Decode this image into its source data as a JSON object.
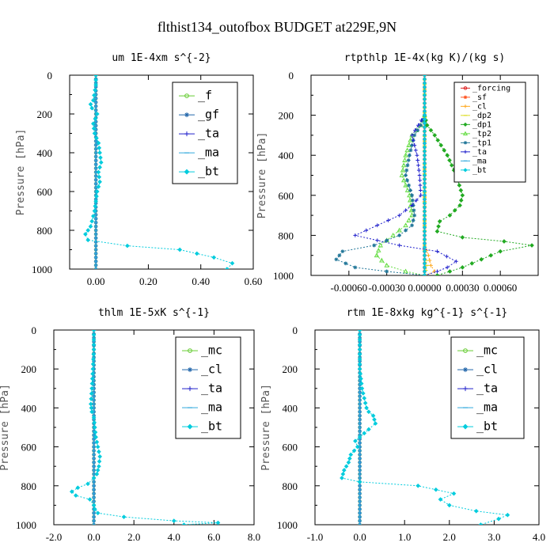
{
  "figure": {
    "title": "flthist134_outofbox  BUDGET at229E,9N"
  },
  "chart_data": [
    {
      "type": "line",
      "title": "um  1E-4xm s^{-2}",
      "ylabel": "Pressure [hPa]",
      "xlabel": "",
      "xlim": [
        -0.1,
        0.6
      ],
      "ylim": [
        1000,
        0
      ],
      "y_reversed": true,
      "xticks": [
        0.0,
        0.2,
        0.4,
        0.6
      ],
      "xtick_labels": [
        "0.00",
        "0.20",
        "0.40",
        "0.60"
      ],
      "yticks": [
        0,
        200,
        400,
        600,
        800,
        1000
      ],
      "ytick_labels": [
        "0",
        "200",
        "400",
        "600",
        "800",
        "1000"
      ],
      "grid": false,
      "legend_position": "top-right",
      "series": [
        {
          "name": "_f",
          "color": "#66cc33",
          "marker": "circle",
          "x": [
            0.0,
            0.0,
            0.0,
            0.0,
            0.0,
            0.0,
            0.0
          ],
          "y": [
            0,
            150,
            300,
            500,
            700,
            900,
            1000
          ]
        },
        {
          "name": "_gf",
          "color": "#2266aa",
          "marker": "star",
          "x": [
            0.0,
            0.0,
            0.0,
            0.0,
            0.0,
            0.0,
            0.0
          ],
          "y": [
            0,
            150,
            300,
            500,
            700,
            900,
            1000
          ]
        },
        {
          "name": "_ta",
          "color": "#2222cc",
          "marker": "plus",
          "x": [
            0.0,
            0.0,
            0.0,
            0.0,
            0.0,
            0.0,
            0.0
          ],
          "y": [
            0,
            150,
            300,
            500,
            700,
            900,
            1000
          ]
        },
        {
          "name": "_ma",
          "color": "#33aadd",
          "marker": "dash",
          "x": [
            0.0,
            0.0,
            0.0,
            0.0,
            0.0,
            0.0,
            0.0
          ],
          "y": [
            0,
            150,
            300,
            500,
            700,
            900,
            1000
          ]
        },
        {
          "name": "_bt",
          "color": "#00ccdd",
          "marker": "diamond",
          "x": [
            0.0,
            0.0,
            -0.01,
            -0.02,
            -0.015,
            0.005,
            -0.01,
            -0.005,
            0.01,
            0.015,
            0.02,
            0.01,
            0.015,
            0.005,
            -0.005,
            -0.02,
            -0.04,
            -0.03,
            0.12,
            0.32,
            0.45,
            0.52,
            0.5
          ],
          "y": [
            0,
            50,
            130,
            150,
            170,
            200,
            250,
            300,
            350,
            400,
            450,
            500,
            550,
            600,
            700,
            780,
            820,
            850,
            880,
            900,
            940,
            970,
            1000
          ]
        }
      ]
    },
    {
      "type": "line",
      "title": "rtpthlp  1E-4x(kg K)/(kg s)",
      "ylabel": "Pressure [hPa]",
      "xlabel": "",
      "xlim": [
        -0.0009,
        0.0009
      ],
      "ylim": [
        1000,
        0
      ],
      "y_reversed": true,
      "xticks": [
        -0.0006,
        -0.0003,
        0.0,
        0.0003,
        0.0006
      ],
      "xtick_labels": [
        "-0.00060",
        "-0.00030",
        "0.00000",
        "0.00030",
        "0.00060"
      ],
      "yticks": [
        0,
        200,
        400,
        600,
        800,
        1000
      ],
      "ytick_labels": [
        "0",
        "200",
        "400",
        "600",
        "800",
        "1000"
      ],
      "grid": false,
      "legend_position": "top-right",
      "series": [
        {
          "name": "_forcing",
          "color": "#dd2222",
          "marker": "circle",
          "x": [
            0.0,
            0.0,
            0.0,
            0.0,
            0.0,
            0.0
          ],
          "y": [
            0,
            200,
            400,
            600,
            800,
            1000
          ]
        },
        {
          "name": "_sf",
          "color": "#ff5522",
          "marker": "star",
          "x": [
            0.0,
            0.0,
            0.0,
            0.0,
            0.0,
            0.0
          ],
          "y": [
            0,
            200,
            400,
            600,
            800,
            1000
          ]
        },
        {
          "name": "_cl",
          "color": "#ffaa22",
          "marker": "plus",
          "x": [
            0.0,
            0.0,
            0.0,
            0.0,
            3e-05,
            5e-05,
            8e-05,
            0.0
          ],
          "y": [
            0,
            400,
            700,
            850,
            900,
            950,
            980,
            1000
          ]
        },
        {
          "name": "_dp2",
          "color": "#dddd22",
          "marker": "dash",
          "x": [
            0.0,
            0.0,
            0.0,
            0.0,
            2e-05,
            0.0
          ],
          "y": [
            0,
            400,
            800,
            900,
            950,
            1000
          ]
        },
        {
          "name": "_dp1",
          "color": "#22aa22",
          "marker": "diamond",
          "x": [
            0.0,
            2e-05,
            8e-05,
            0.00018,
            0.00025,
            0.0003,
            0.00028,
            0.0002,
            0.00012,
            0.0001,
            0.0003,
            0.00063,
            0.00085,
            0.0006,
            0.00045,
            0.0003,
            0.0001
          ],
          "y": [
            200,
            250,
            300,
            400,
            500,
            600,
            650,
            700,
            730,
            780,
            810,
            830,
            850,
            880,
            920,
            960,
            1000
          ]
        },
        {
          "name": "_tp2",
          "color": "#66dd44",
          "marker": "triangle",
          "x": [
            0.0,
            -3e-05,
            -0.0001,
            -0.00015,
            -0.00018,
            -0.00012,
            -0.0001,
            -0.00015,
            -0.00025,
            -0.00035,
            -0.00038,
            -0.0003,
            -0.00015,
            0.0
          ],
          "y": [
            200,
            250,
            300,
            400,
            500,
            600,
            700,
            750,
            800,
            850,
            900,
            950,
            980,
            1000
          ]
        },
        {
          "name": "_tp1",
          "color": "#227799",
          "marker": "star",
          "x": [
            0.0,
            -3e-05,
            -8e-05,
            -0.00012,
            -0.00015,
            -0.0001,
            -8e-05,
            -0.0001,
            -0.0002,
            -0.0004,
            -0.00065,
            -0.0007,
            -0.00055,
            -0.0003,
            0.0
          ],
          "y": [
            200,
            250,
            300,
            400,
            500,
            600,
            700,
            750,
            800,
            850,
            880,
            920,
            960,
            980,
            1000
          ]
        },
        {
          "name": "_ta",
          "color": "#2222cc",
          "marker": "plus",
          "x": [
            0.0,
            -5e-05,
            -0.0001,
            -6e-05,
            -4e-05,
            -3e-05,
            -0.0001,
            -0.0002,
            -0.00055,
            -0.0002,
            0.0001,
            0.00025,
            0.00018,
            0.0001,
            0.0
          ],
          "y": [
            200,
            250,
            300,
            400,
            500,
            600,
            650,
            700,
            800,
            850,
            880,
            930,
            960,
            980,
            1000
          ]
        },
        {
          "name": "_ma",
          "color": "#33aadd",
          "marker": "dash",
          "x": [
            0.0,
            0.0,
            0.0,
            0.0,
            0.0,
            0.0
          ],
          "y": [
            0,
            200,
            400,
            600,
            800,
            1000
          ]
        },
        {
          "name": "_bt",
          "color": "#00ccdd",
          "marker": "diamond",
          "x": [
            0.0,
            0.0,
            0.0,
            0.0,
            0.0,
            0.0
          ],
          "y": [
            0,
            200,
            400,
            600,
            800,
            1000
          ]
        }
      ]
    },
    {
      "type": "line",
      "title": "thlm  1E-5xK s^{-1}",
      "ylabel": "Pressure [hPa]",
      "xlabel": "",
      "xlim": [
        -2.0,
        8.0
      ],
      "ylim": [
        1000,
        0
      ],
      "y_reversed": true,
      "xticks": [
        -2.0,
        0.0,
        2.0,
        4.0,
        6.0,
        8.0
      ],
      "xtick_labels": [
        "-2.0",
        "0.0",
        "2.0",
        "4.0",
        "6.0",
        "8.0"
      ],
      "yticks": [
        0,
        200,
        400,
        600,
        800,
        1000
      ],
      "ytick_labels": [
        "0",
        "200",
        "400",
        "600",
        "800",
        "1000"
      ],
      "grid": false,
      "legend_position": "top-right",
      "series": [
        {
          "name": "_mc",
          "color": "#66cc33",
          "marker": "circle",
          "x": [
            0.0,
            0.0,
            0.0,
            0.0,
            0.0,
            0.0,
            0.0
          ],
          "y": [
            0,
            150,
            300,
            500,
            700,
            900,
            1000
          ]
        },
        {
          "name": "_cl",
          "color": "#2266aa",
          "marker": "star",
          "x": [
            0.0,
            0.0,
            0.0,
            0.0,
            0.0,
            0.0,
            0.0
          ],
          "y": [
            0,
            150,
            300,
            500,
            700,
            900,
            1000
          ]
        },
        {
          "name": "_ta",
          "color": "#2222cc",
          "marker": "plus",
          "x": [
            0.0,
            0.0,
            0.0,
            0.0,
            0.0,
            0.0,
            0.0
          ],
          "y": [
            0,
            150,
            300,
            500,
            700,
            900,
            1000
          ]
        },
        {
          "name": "_ma",
          "color": "#33aadd",
          "marker": "dash",
          "x": [
            0.0,
            0.0,
            0.0,
            0.0,
            0.0,
            0.0,
            0.0
          ],
          "y": [
            0,
            150,
            300,
            500,
            700,
            900,
            1000
          ]
        },
        {
          "name": "_bt",
          "color": "#00ccdd",
          "marker": "diamond",
          "x": [
            0.0,
            0.0,
            -0.05,
            -0.1,
            -0.15,
            -0.1,
            0.0,
            0.05,
            0.1,
            0.2,
            0.3,
            0.25,
            0.15,
            0.0,
            -0.3,
            -0.8,
            -1.1,
            -0.9,
            -0.2,
            0.0,
            0.05,
            0.2,
            1.5,
            4.0,
            6.2,
            4.5
          ],
          "y": [
            0,
            100,
            200,
            300,
            380,
            420,
            450,
            500,
            550,
            600,
            650,
            700,
            740,
            760,
            790,
            810,
            830,
            850,
            870,
            900,
            920,
            940,
            960,
            980,
            990,
            1000
          ]
        }
      ]
    },
    {
      "type": "line",
      "title": "rtm  1E-8xkg kg^{-1} s^{-1}",
      "ylabel": "Pressure [hPa]",
      "xlabel": "",
      "xlim": [
        -1.0,
        4.0
      ],
      "ylim": [
        1000,
        0
      ],
      "y_reversed": true,
      "xticks": [
        -1.0,
        0.0,
        1.0,
        2.0,
        3.0,
        4.0
      ],
      "xtick_labels": [
        "-1.0",
        "0.0",
        "1.0",
        "2.0",
        "3.0",
        "4.0"
      ],
      "yticks": [
        0,
        200,
        400,
        600,
        800,
        1000
      ],
      "ytick_labels": [
        "0",
        "200",
        "400",
        "600",
        "800",
        "1000"
      ],
      "grid": false,
      "legend_position": "top-right",
      "series": [
        {
          "name": "_mc",
          "color": "#66cc33",
          "marker": "circle",
          "x": [
            0.0,
            0.0,
            0.0,
            0.0,
            0.0,
            0.0,
            0.0
          ],
          "y": [
            0,
            150,
            300,
            500,
            700,
            900,
            1000
          ]
        },
        {
          "name": "_cl",
          "color": "#2266aa",
          "marker": "star",
          "x": [
            0.0,
            0.0,
            0.0,
            0.0,
            0.0,
            0.0,
            0.0
          ],
          "y": [
            0,
            150,
            300,
            500,
            700,
            900,
            1000
          ]
        },
        {
          "name": "_ta",
          "color": "#2222cc",
          "marker": "plus",
          "x": [
            0.0,
            0.0,
            0.0,
            0.0,
            0.0,
            0.0,
            0.0
          ],
          "y": [
            0,
            150,
            300,
            500,
            700,
            900,
            1000
          ]
        },
        {
          "name": "_ma",
          "color": "#33aadd",
          "marker": "dash",
          "x": [
            0.0,
            0.0,
            0.0,
            0.0,
            0.0,
            0.0,
            0.0
          ],
          "y": [
            0,
            150,
            300,
            500,
            700,
            900,
            1000
          ]
        },
        {
          "name": "_bt",
          "color": "#00ccdd",
          "marker": "diamond",
          "x": [
            0.0,
            0.0,
            0.05,
            0.1,
            0.15,
            0.2,
            0.3,
            0.35,
            0.2,
            0.0,
            -0.1,
            -0.05,
            -0.2,
            -0.25,
            -0.35,
            -0.4,
            0.0,
            1.3,
            2.1,
            1.8,
            2.0,
            2.6,
            3.3,
            3.1,
            2.7
          ],
          "y": [
            0,
            200,
            300,
            350,
            400,
            420,
            440,
            480,
            510,
            550,
            570,
            600,
            640,
            680,
            720,
            760,
            780,
            800,
            840,
            870,
            900,
            930,
            950,
            970,
            1000
          ]
        }
      ]
    }
  ]
}
